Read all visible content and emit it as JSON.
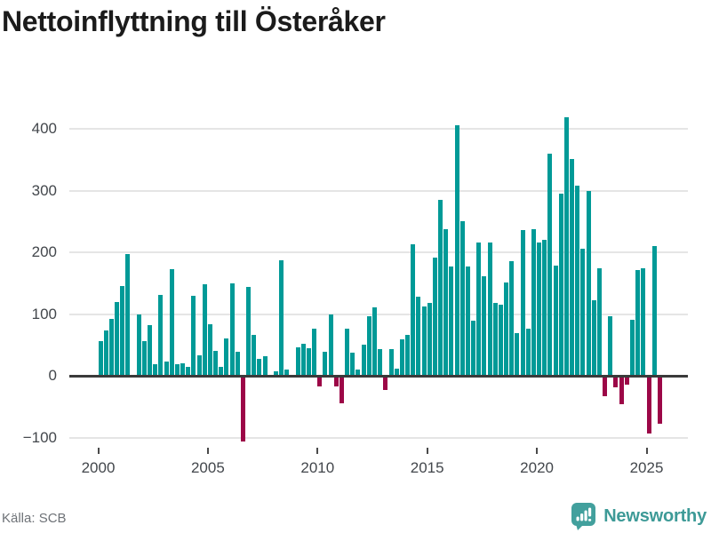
{
  "title": "Nettoinflyttning till Österåker",
  "source": "Källa: SCB",
  "branding": {
    "name": "Newsworthy",
    "logo_icon": "bar-chart-badge-icon"
  },
  "colors": {
    "positive": "#009a97",
    "negative": "#9c0747",
    "axis": "#3a3a3a",
    "grid": "#e5e5e5",
    "brand_teal": "#3d9a97"
  },
  "chart_data": {
    "type": "bar",
    "title": "Nettoinflyttning till Österåker",
    "frequency": "quarterly",
    "x_start": "2000-Q1",
    "x_end": "2025-Q3",
    "values": [
      57,
      74,
      92,
      120,
      146,
      198,
      0,
      100,
      57,
      82,
      19,
      132,
      24,
      173,
      19,
      21,
      15,
      130,
      34,
      149,
      84,
      41,
      14,
      61,
      150,
      39,
      -104,
      144,
      66,
      28,
      32,
      0,
      8,
      187,
      11,
      0,
      47,
      52,
      45,
      77,
      -15,
      39,
      100,
      -15,
      -42,
      77,
      38,
      11,
      51,
      97,
      111,
      43,
      -21,
      43,
      12,
      59,
      67,
      214,
      128,
      112,
      118,
      192,
      286,
      238,
      178,
      406,
      251,
      178,
      90,
      217,
      161,
      217,
      118,
      116,
      151,
      186,
      70,
      237,
      77,
      238,
      217,
      220,
      360,
      179,
      296,
      420,
      352,
      308,
      206,
      300,
      122,
      174,
      -31,
      97,
      -16,
      -44,
      -12,
      91,
      171,
      174,
      -91,
      211,
      -76
    ],
    "xticks": [
      "2000",
      "2005",
      "2010",
      "2015",
      "2020",
      "2025"
    ],
    "yticks": [
      "400",
      "300",
      "200",
      "100",
      "0",
      "−100"
    ],
    "ytick_values": [
      400,
      300,
      200,
      100,
      0,
      -100
    ],
    "ylim": [
      -130,
      430
    ],
    "grid": true,
    "legend": "none",
    "positive_color": "#009a97",
    "negative_color": "#9c0747",
    "source_note": "Källa: SCB"
  }
}
